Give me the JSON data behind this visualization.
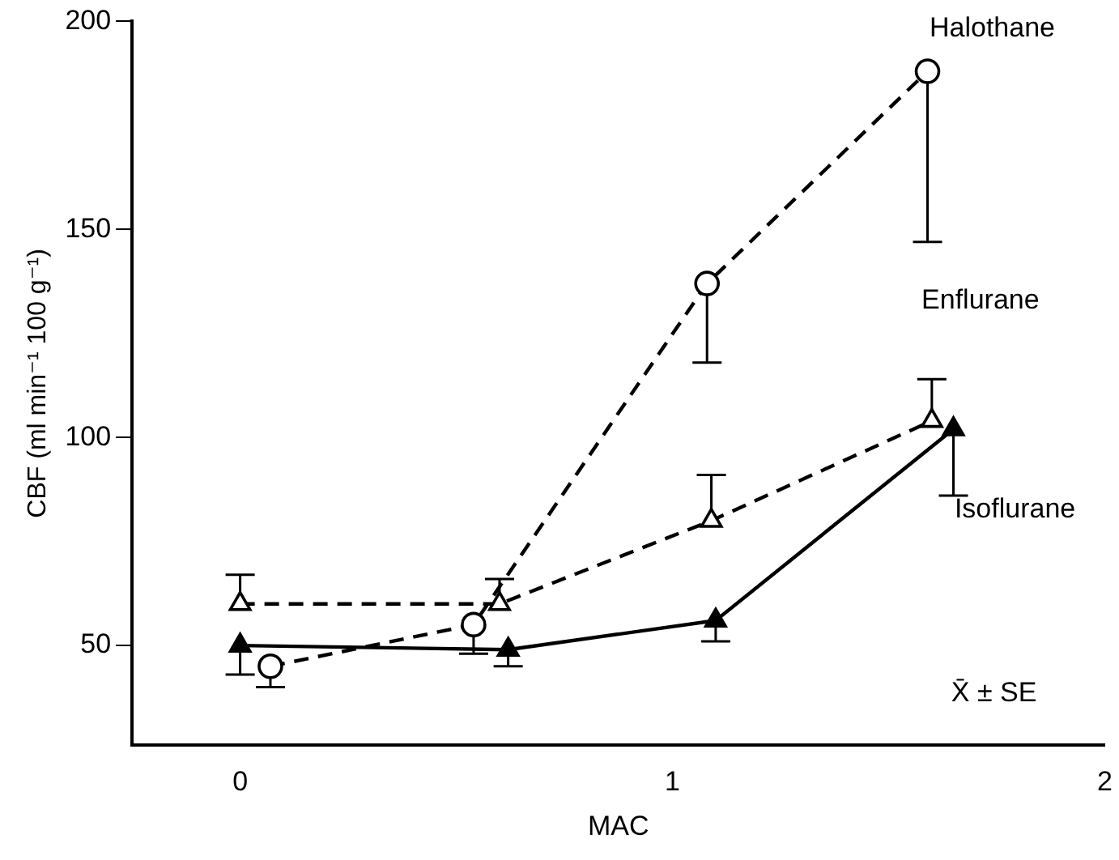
{
  "chart_data": {
    "type": "line",
    "xlabel": "MAC",
    "ylabel": "CBF (ml min⁻¹ 100 g⁻¹)",
    "xlim": [
      -0.25,
      2
    ],
    "xticks": [
      0,
      1,
      2
    ],
    "ylim": [
      26,
      200
    ],
    "yticks": [
      50,
      100,
      150,
      200
    ],
    "grid": false,
    "legend": false,
    "series": [
      {
        "name": "Halothane",
        "color": "#000000",
        "marker": "circle",
        "line_style": "dashed",
        "x": [
          0.07,
          0.54,
          1.08,
          1.59
        ],
        "values": [
          45,
          55,
          137,
          188
        ],
        "errors": [
          [
            40,
            45
          ],
          [
            48,
            55
          ],
          [
            118,
            137
          ],
          [
            147,
            188
          ]
        ]
      },
      {
        "name": "Enflurane",
        "color": "#000000",
        "marker": "triangle",
        "line_style": "dashed",
        "x": [
          0,
          0.6,
          1.09,
          1.6
        ],
        "values": [
          60,
          60,
          80,
          104
        ],
        "errors": [
          [
            60,
            67
          ],
          [
            60,
            66
          ],
          [
            80,
            91
          ],
          [
            104,
            114
          ]
        ]
      },
      {
        "name": "Isoflurane",
        "color": "#000000",
        "marker": "triangle",
        "line_style": "solid",
        "x": [
          0,
          0.62,
          1.1,
          1.65
        ],
        "values": [
          50,
          49,
          56,
          102
        ],
        "errors": [
          [
            43,
            50
          ],
          [
            45,
            49
          ],
          [
            51,
            56
          ],
          [
            86,
            102
          ]
        ]
      }
    ],
    "annotations": [
      "X̄ ± SE"
    ]
  }
}
